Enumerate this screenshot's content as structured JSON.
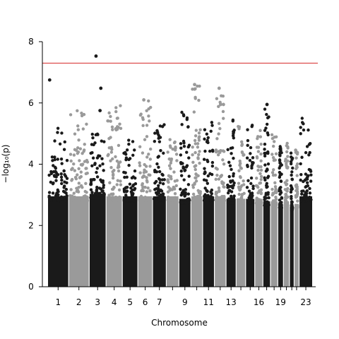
{
  "chart_data": {
    "type": "scatter",
    "subtype": "manhattan",
    "xlabel": "Chromosome",
    "ylabel": "−log₁₀(p)",
    "ylim": [
      0,
      8
    ],
    "y_ticks": [
      0,
      2,
      4,
      6,
      8
    ],
    "significance_line": {
      "y": 7.3,
      "color": "#d62728"
    },
    "colors": {
      "odd": "#1a1a1a",
      "even": "#9a9a9a"
    },
    "chromosomes": [
      {
        "chr": 1,
        "label": "1",
        "length": 249,
        "dense_max": 3.6,
        "tail_max": 5.2
      },
      {
        "chr": 2,
        "label": "2",
        "length": 243,
        "dense_max": 3.6,
        "tail_max": 5.8
      },
      {
        "chr": 3,
        "label": "3",
        "length": 198,
        "dense_max": 3.7,
        "tail_max": 5.2
      },
      {
        "chr": 4,
        "label": "4",
        "length": 190,
        "dense_max": 3.6,
        "tail_max": 6.0
      },
      {
        "chr": 5,
        "label": "5",
        "length": 181,
        "dense_max": 3.6,
        "tail_max": 4.9
      },
      {
        "chr": 6,
        "label": "6",
        "length": 171,
        "dense_max": 3.6,
        "tail_max": 6.1
      },
      {
        "chr": 7,
        "label": "7",
        "length": 159,
        "dense_max": 3.6,
        "tail_max": 5.5
      },
      {
        "chr": 8,
        "label": "",
        "length": 145,
        "dense_max": 3.6,
        "tail_max": 5.0
      },
      {
        "chr": 9,
        "label": "9",
        "length": 138,
        "dense_max": 3.5,
        "tail_max": 5.7
      },
      {
        "chr": 10,
        "label": "",
        "length": 134,
        "dense_max": 3.6,
        "tail_max": 6.6
      },
      {
        "chr": 11,
        "label": "11",
        "length": 135,
        "dense_max": 3.6,
        "tail_max": 5.5
      },
      {
        "chr": 12,
        "label": "",
        "length": 133,
        "dense_max": 3.6,
        "tail_max": 6.5
      },
      {
        "chr": 13,
        "label": "13",
        "length": 114,
        "dense_max": 3.5,
        "tail_max": 5.6
      },
      {
        "chr": 14,
        "label": "",
        "length": 107,
        "dense_max": 3.5,
        "tail_max": 5.3
      },
      {
        "chr": 15,
        "label": "",
        "length": 102,
        "dense_max": 3.5,
        "tail_max": 5.4
      },
      {
        "chr": 16,
        "label": "16",
        "length": 90,
        "dense_max": 3.5,
        "tail_max": 5.2
      },
      {
        "chr": 17,
        "label": "",
        "length": 83,
        "dense_max": 3.4,
        "tail_max": 5.9
      },
      {
        "chr": 18,
        "label": "",
        "length": 80,
        "dense_max": 3.4,
        "tail_max": 5.1
      },
      {
        "chr": 19,
        "label": "19",
        "length": 59,
        "dense_max": 3.3,
        "tail_max": 4.6
      },
      {
        "chr": 20,
        "label": "",
        "length": 64,
        "dense_max": 3.4,
        "tail_max": 4.8
      },
      {
        "chr": 21,
        "label": "",
        "length": 47,
        "dense_max": 3.2,
        "tail_max": 4.4
      },
      {
        "chr": 22,
        "label": "",
        "length": 51,
        "dense_max": 3.3,
        "tail_max": 4.6
      },
      {
        "chr": 23,
        "label": "23",
        "length": 156,
        "dense_max": 3.6,
        "tail_max": 5.5
      }
    ],
    "top_hits": [
      {
        "chr": 1,
        "pos": 0.08,
        "y": 6.75
      },
      {
        "chr": 3,
        "pos": 0.4,
        "y": 7.53
      },
      {
        "chr": 3,
        "pos": 0.7,
        "y": 6.48
      },
      {
        "chr": 3,
        "pos": 0.65,
        "y": 5.75
      },
      {
        "chr": 6,
        "pos": 0.4,
        "y": 6.1
      },
      {
        "chr": 10,
        "pos": 0.3,
        "y": 6.6
      },
      {
        "chr": 10,
        "pos": 0.3,
        "y": 6.45
      },
      {
        "chr": 12,
        "pos": 0.4,
        "y": 6.48
      },
      {
        "chr": 12,
        "pos": 0.8,
        "y": 5.95
      },
      {
        "chr": 17,
        "pos": 0.55,
        "y": 5.95
      }
    ]
  }
}
